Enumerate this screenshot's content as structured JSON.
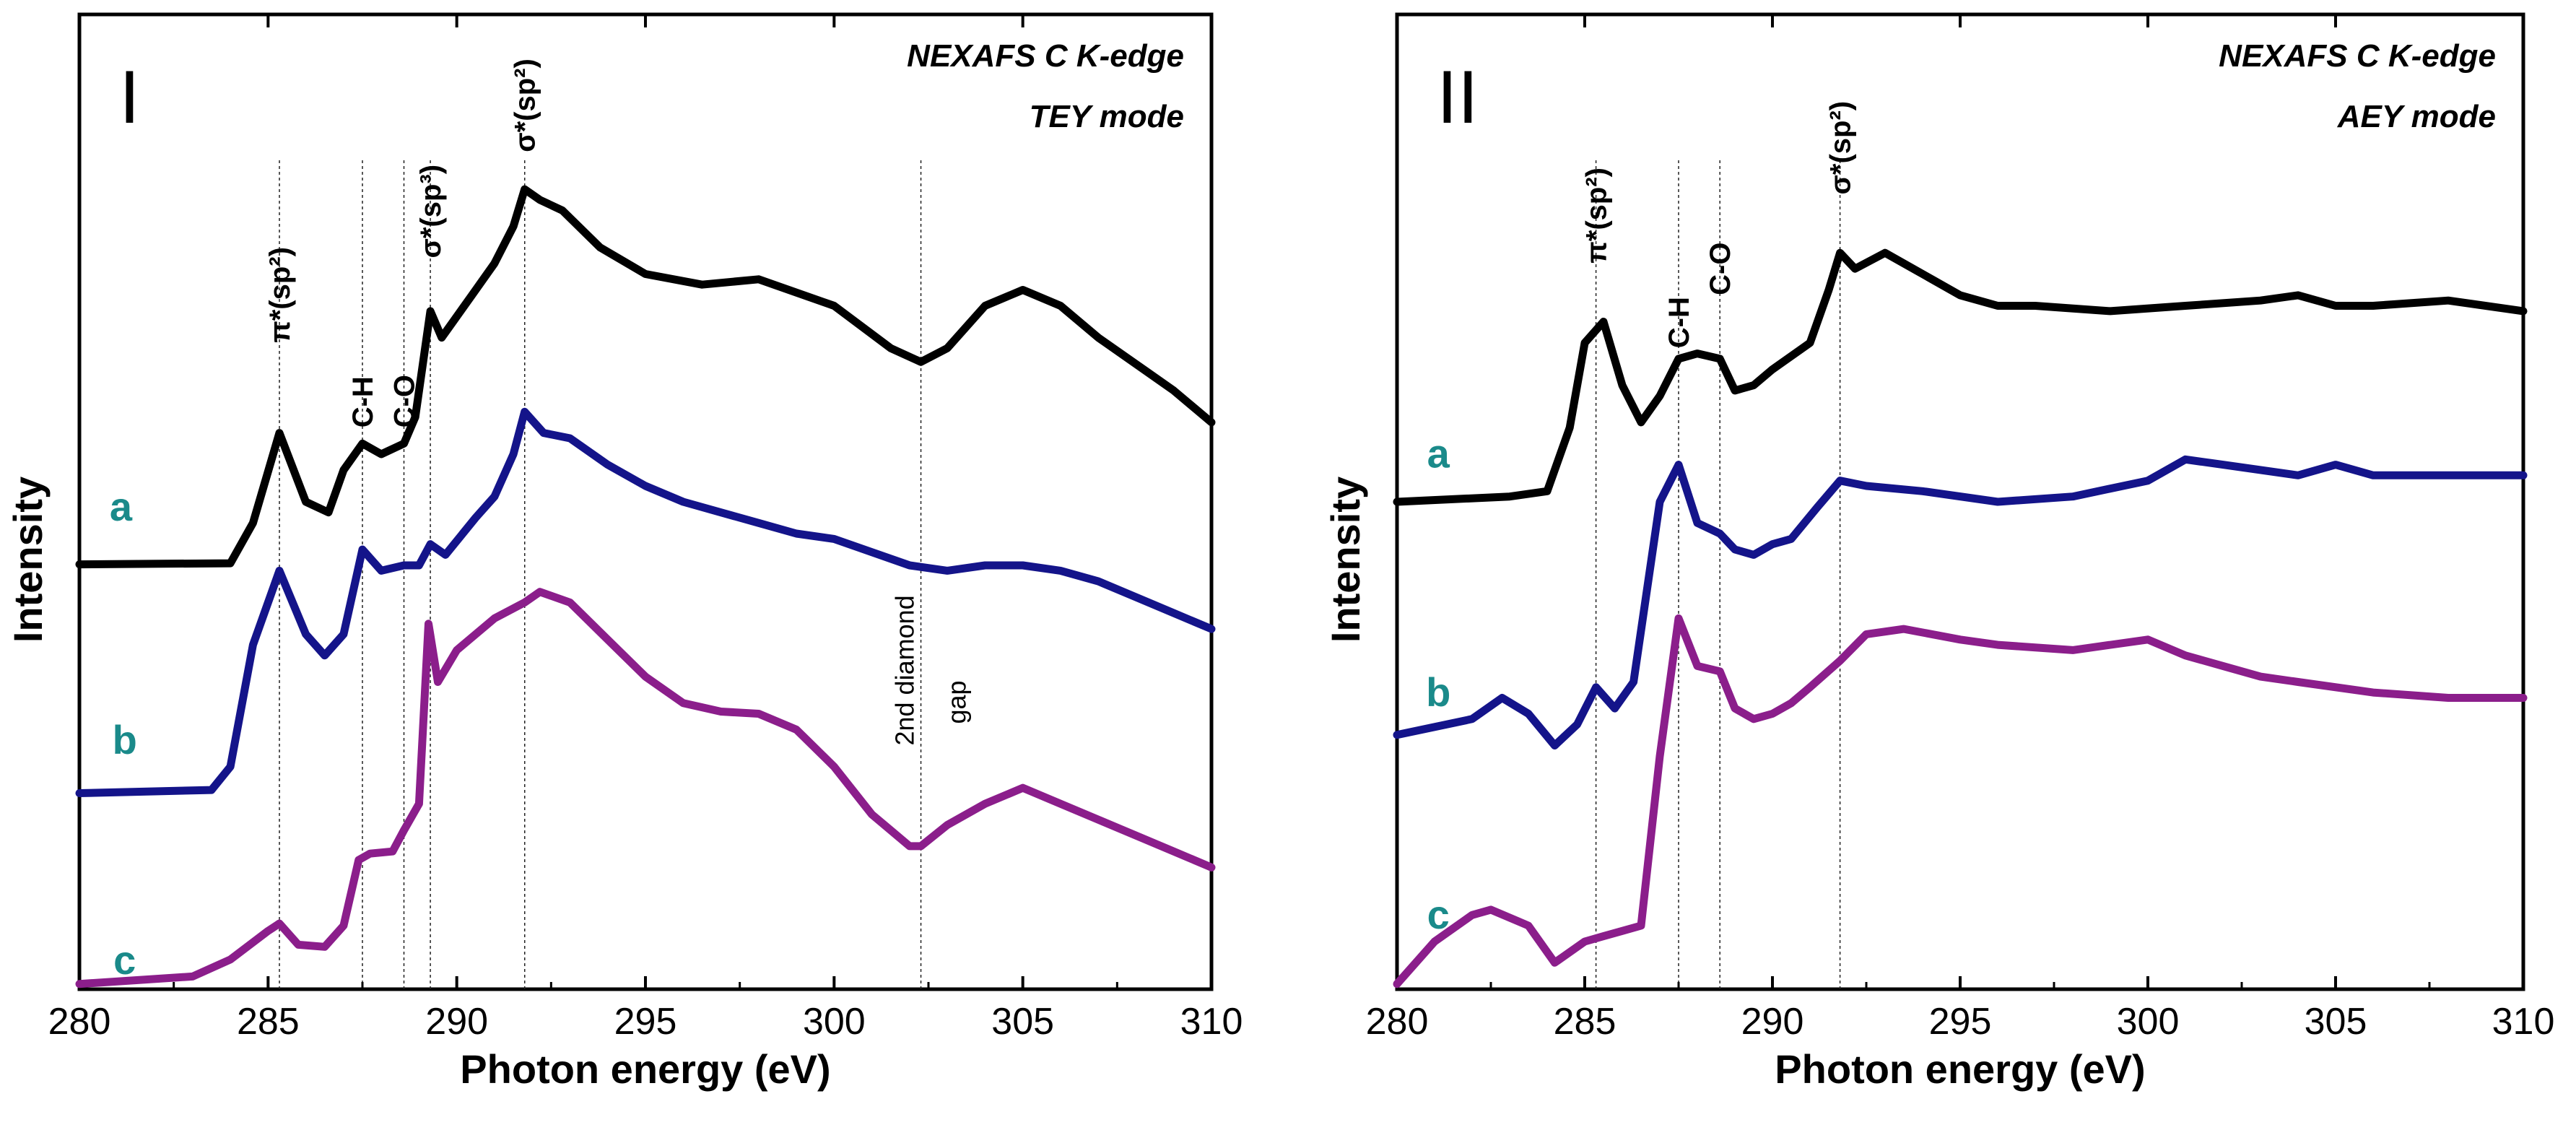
{
  "chart_data": [
    {
      "type": "line",
      "panel_label": "I",
      "title_lines": [
        "NEXAFS C K-edge",
        "TEY mode"
      ],
      "xlabel": "Photon energy (eV)",
      "ylabel": "Intensity",
      "xlim": [
        280,
        310
      ],
      "ylim": [
        0,
        9.2
      ],
      "xticks": [
        "280",
        "285",
        "290",
        "295",
        "300",
        "305",
        "310"
      ],
      "series_label_color": "#1a8a8a",
      "guide_lines_x": [
        285.3,
        287.5,
        288.6,
        289.3,
        291.8,
        302.3
      ],
      "annotations": [
        {
          "text": "π*(sp²)",
          "x": 285.3,
          "y": 6.1
        },
        {
          "text": "C-H",
          "x": 287.5,
          "y": 5.3
        },
        {
          "text": "C-O",
          "x": 288.6,
          "y": 5.3
        },
        {
          "text": "σ*(sp³)",
          "x": 289.3,
          "y": 6.9
        },
        {
          "text": "σ*(sp²)",
          "x": 291.8,
          "y": 7.9
        }
      ],
      "gap_annotation": {
        "line1": "2nd diamond",
        "line2": "gap",
        "x": 302.3,
        "y": 2.3
      },
      "series": [
        {
          "name": "a",
          "color": "#000000",
          "label_x": 281.1,
          "label_y": 4.3,
          "x": [
            280,
            284,
            284.6,
            285.3,
            286,
            286.6,
            287,
            287.5,
            288,
            288.6,
            288.9,
            289.3,
            289.6,
            290.4,
            291,
            291.5,
            291.8,
            292.2,
            292.8,
            293.8,
            295,
            296.5,
            298,
            300,
            301.5,
            302.3,
            303,
            304,
            305,
            306,
            307,
            308,
            309,
            310
          ],
          "values": [
            4.01,
            4.02,
            4.4,
            5.25,
            4.6,
            4.5,
            4.9,
            5.15,
            5.05,
            5.15,
            5.4,
            6.4,
            6.15,
            6.55,
            6.85,
            7.2,
            7.55,
            7.45,
            7.35,
            7.0,
            6.75,
            6.65,
            6.7,
            6.45,
            6.05,
            5.92,
            6.05,
            6.45,
            6.6,
            6.45,
            6.15,
            5.9,
            5.65,
            5.35
          ]
        },
        {
          "name": "b",
          "color": "#14148a",
          "label_x": 281.2,
          "label_y": 2.1,
          "x": [
            280,
            283.5,
            284,
            284.6,
            285.3,
            286,
            286.5,
            287,
            287.5,
            288,
            288.6,
            289,
            289.3,
            289.7,
            290.5,
            291,
            291.5,
            291.8,
            292.3,
            293,
            294,
            295,
            296,
            297,
            298,
            299,
            300,
            302,
            303,
            304,
            305,
            306,
            307,
            308,
            309,
            310
          ],
          "values": [
            1.85,
            1.88,
            2.1,
            3.25,
            3.95,
            3.35,
            3.15,
            3.35,
            4.15,
            3.95,
            4.0,
            4.0,
            4.2,
            4.1,
            4.45,
            4.65,
            5.05,
            5.45,
            5.25,
            5.2,
            4.95,
            4.75,
            4.6,
            4.5,
            4.4,
            4.3,
            4.25,
            4.0,
            3.95,
            4.0,
            4.0,
            3.95,
            3.85,
            3.7,
            3.55,
            3.4
          ]
        },
        {
          "name": "c",
          "color": "#8b1e8b",
          "label_x": 281.2,
          "label_y": 0.02,
          "x": [
            280,
            283,
            284,
            285,
            285.3,
            285.8,
            286.5,
            287,
            287.4,
            287.7,
            288.3,
            288.6,
            289,
            289.25,
            289.5,
            290,
            291,
            291.8,
            292.2,
            293,
            294,
            295,
            296,
            297,
            298,
            299,
            300,
            301,
            302,
            302.3,
            303,
            304,
            305,
            306,
            307,
            308,
            309,
            310
          ],
          "values": [
            0.05,
            0.12,
            0.28,
            0.55,
            0.62,
            0.42,
            0.4,
            0.6,
            1.22,
            1.28,
            1.3,
            1.5,
            1.75,
            3.45,
            2.9,
            3.2,
            3.5,
            3.65,
            3.75,
            3.65,
            3.3,
            2.95,
            2.7,
            2.62,
            2.6,
            2.45,
            2.1,
            1.65,
            1.35,
            1.35,
            1.55,
            1.75,
            1.9,
            1.75,
            1.6,
            1.45,
            1.3,
            1.15
          ]
        }
      ]
    },
    {
      "type": "line",
      "panel_label": "II",
      "title_lines": [
        "NEXAFS C K-edge",
        "AEY mode"
      ],
      "xlabel": "Photon energy (eV)",
      "ylabel": "Intensity",
      "xlim": [
        280,
        310
      ],
      "ylim": [
        0,
        9.2
      ],
      "xticks": [
        "280",
        "285",
        "290",
        "295",
        "300",
        "305",
        "310"
      ],
      "series_label_color": "#1a8a8a",
      "guide_lines_x": [
        285.3,
        287.5,
        288.6,
        291.8
      ],
      "annotations": [
        {
          "text": "π*(sp²)",
          "x": 285.3,
          "y": 6.85
        },
        {
          "text": "C-H",
          "x": 287.5,
          "y": 6.05
        },
        {
          "text": "C-O",
          "x": 288.6,
          "y": 6.55
        },
        {
          "text": "σ*(sp²)",
          "x": 291.8,
          "y": 7.5
        }
      ],
      "series": [
        {
          "name": "a",
          "color": "#000000",
          "label_x": 281.1,
          "label_y": 4.8,
          "x": [
            280,
            283,
            284,
            284.6,
            285,
            285.5,
            286,
            286.5,
            287,
            287.5,
            288,
            288.6,
            289,
            289.5,
            290,
            291,
            291.5,
            291.8,
            292.2,
            293,
            294,
            295,
            296,
            297,
            299,
            301,
            303,
            304,
            305,
            306,
            308,
            310
          ],
          "values": [
            4.6,
            4.65,
            4.7,
            5.3,
            6.1,
            6.3,
            5.7,
            5.35,
            5.6,
            5.95,
            6.0,
            5.95,
            5.65,
            5.7,
            5.85,
            6.1,
            6.6,
            6.95,
            6.8,
            6.95,
            6.75,
            6.55,
            6.45,
            6.45,
            6.4,
            6.45,
            6.5,
            6.55,
            6.45,
            6.45,
            6.5,
            6.4
          ]
        },
        {
          "name": "b",
          "color": "#14148a",
          "label_x": 281.1,
          "label_y": 2.55,
          "x": [
            280,
            282,
            282.8,
            283.5,
            284.2,
            284.8,
            285.3,
            285.8,
            286.3,
            287,
            287.5,
            288,
            288.6,
            289,
            289.5,
            290,
            290.5,
            291.2,
            291.8,
            292.5,
            294,
            296,
            298,
            300,
            301,
            302,
            304,
            305,
            306,
            308,
            310
          ],
          "values": [
            2.4,
            2.55,
            2.75,
            2.6,
            2.3,
            2.5,
            2.85,
            2.65,
            2.9,
            4.6,
            4.95,
            4.4,
            4.3,
            4.15,
            4.1,
            4.2,
            4.25,
            4.55,
            4.8,
            4.75,
            4.7,
            4.6,
            4.65,
            4.8,
            5.0,
            4.95,
            4.85,
            4.95,
            4.85,
            4.85,
            4.85
          ]
        },
        {
          "name": "c",
          "color": "#8b1e8b",
          "label_x": 281.1,
          "label_y": 0.45,
          "x": [
            280,
            281,
            282,
            282.5,
            283.5,
            284.2,
            285,
            285.5,
            286,
            286.5,
            287,
            287.5,
            288,
            288.6,
            289,
            289.5,
            290,
            290.5,
            291,
            291.8,
            292.5,
            293.5,
            295,
            296,
            298,
            300,
            301,
            302,
            303,
            304,
            306,
            308,
            310
          ],
          "values": [
            0.05,
            0.45,
            0.7,
            0.75,
            0.6,
            0.25,
            0.45,
            0.5,
            0.55,
            0.6,
            2.2,
            3.5,
            3.05,
            3.0,
            2.65,
            2.55,
            2.6,
            2.7,
            2.85,
            3.1,
            3.35,
            3.4,
            3.3,
            3.25,
            3.2,
            3.3,
            3.15,
            3.05,
            2.95,
            2.9,
            2.8,
            2.75,
            2.75
          ]
        }
      ]
    }
  ]
}
